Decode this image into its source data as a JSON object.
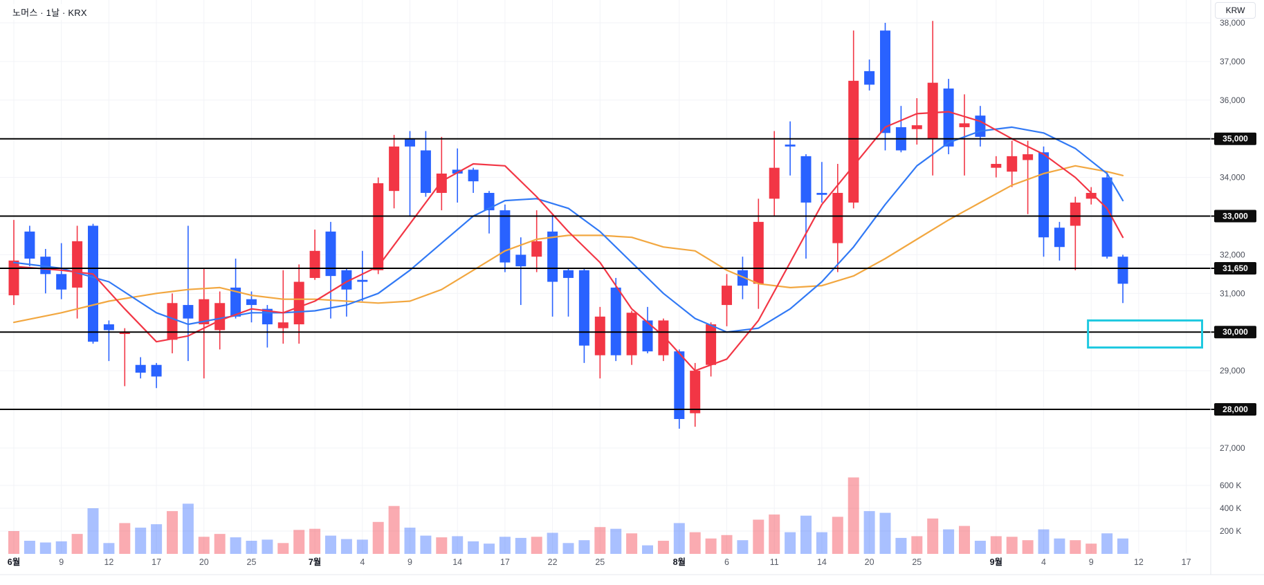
{
  "header": {
    "symbol_title": "노머스 · 1날 · KRX"
  },
  "price_axis": {
    "currency_label": "KRW",
    "plain_ticks": [
      {
        "price": 38000,
        "label": "38,000"
      },
      {
        "price": 37000,
        "label": "37,000"
      },
      {
        "price": 36000,
        "label": "36,000"
      },
      {
        "price": 34000,
        "label": "34,000"
      },
      {
        "price": 32000,
        "label": "32,000"
      },
      {
        "price": 31000,
        "label": "31,000"
      },
      {
        "price": 29000,
        "label": "29,000"
      },
      {
        "price": 27000,
        "label": "27,000"
      }
    ],
    "line_labels": [
      {
        "price": 35000,
        "label": "35,000"
      },
      {
        "price": 33000,
        "label": "33,000"
      },
      {
        "price": 31650,
        "label": "31,650"
      },
      {
        "price": 30000,
        "label": "30,000"
      },
      {
        "price": 28000,
        "label": "28,000"
      }
    ]
  },
  "volume_axis": {
    "labels": [
      {
        "value_k": 600,
        "label": "600 K"
      },
      {
        "value_k": 400,
        "label": "400 K"
      },
      {
        "value_k": 200,
        "label": "200 K"
      }
    ]
  },
  "time_axis": {
    "ticks": [
      {
        "index": 0,
        "label": "6월",
        "emphasis": true
      },
      {
        "index": 3,
        "label": "9"
      },
      {
        "index": 6,
        "label": "12"
      },
      {
        "index": 9,
        "label": "17"
      },
      {
        "index": 12,
        "label": "20"
      },
      {
        "index": 15,
        "label": "25"
      },
      {
        "index": 19,
        "label": "7월",
        "emphasis": true
      },
      {
        "index": 22,
        "label": "4"
      },
      {
        "index": 25,
        "label": "9"
      },
      {
        "index": 28,
        "label": "14"
      },
      {
        "index": 31,
        "label": "17"
      },
      {
        "index": 34,
        "label": "22"
      },
      {
        "index": 37,
        "label": "25"
      },
      {
        "index": 42,
        "label": "8월",
        "emphasis": true
      },
      {
        "index": 45,
        "label": "6"
      },
      {
        "index": 48,
        "label": "11"
      },
      {
        "index": 51,
        "label": "14"
      },
      {
        "index": 54,
        "label": "20"
      },
      {
        "index": 57,
        "label": "25"
      },
      {
        "index": 62,
        "label": "9월",
        "emphasis": true
      },
      {
        "index": 65,
        "label": "4"
      },
      {
        "index": 68,
        "label": "9"
      },
      {
        "index": 71,
        "label": "12"
      },
      {
        "index": 74,
        "label": "17"
      }
    ]
  },
  "colors": {
    "candle_up": "#f23645",
    "candle_down": "#2962ff",
    "volume_up": "rgba(242,54,69,0.42)",
    "volume_down": "rgba(41,98,255,0.40)",
    "ma_fast": "#f23645",
    "ma_mid": "#3179f5",
    "ma_slow": "#f2a740",
    "horizontal_line": "#000000",
    "rectangle_drawing": "#1ec9e0",
    "grid": "#f2f3f7",
    "axis_text": "#4a4e59",
    "axis_text_strong": "#131722",
    "pill_bg": "#0d0d0d",
    "pill_text": "#ffffff",
    "axis_border": "#e4e7ee"
  },
  "chart_data": {
    "type": "candlestick",
    "title": "노머스 · 1날 · KRX",
    "symbol": "노머스",
    "interval": "1날",
    "exchange": "KRX",
    "currency": "KRW",
    "price_ticks_step": 1000,
    "visible_price_range": [
      27000,
      38300
    ],
    "volume_scale_k": [
      200,
      400,
      600
    ],
    "horizontal_lines": [
      35000,
      33000,
      31650,
      30000,
      28000
    ],
    "rectangle": {
      "from_index": 67.8,
      "to_index": 75.0,
      "top_price": 30300,
      "bottom_price": 29600
    },
    "candle_format": [
      "open",
      "high",
      "low",
      "close",
      "volume_k"
    ],
    "candles": [
      [
        30950,
        32900,
        30700,
        31850,
        200
      ],
      [
        32600,
        32750,
        31700,
        31900,
        115
      ],
      [
        31950,
        32150,
        31000,
        31500,
        100
      ],
      [
        31500,
        32300,
        30850,
        31100,
        110
      ],
      [
        31150,
        32750,
        30350,
        32350,
        175
      ],
      [
        32750,
        32800,
        29700,
        29750,
        400
      ],
      [
        30200,
        30300,
        29250,
        30050,
        95
      ],
      [
        29950,
        30100,
        28600,
        30000,
        270
      ],
      [
        29150,
        29350,
        28800,
        28950,
        230
      ],
      [
        29150,
        29200,
        28550,
        28850,
        260
      ],
      [
        29800,
        31000,
        29450,
        30750,
        375
      ],
      [
        30700,
        32750,
        29250,
        30350,
        440
      ],
      [
        30200,
        31650,
        28800,
        30850,
        150
      ],
      [
        30050,
        31050,
        29550,
        30750,
        175
      ],
      [
        31150,
        31900,
        30350,
        30400,
        145
      ],
      [
        30850,
        31050,
        30250,
        30700,
        115
      ],
      [
        30600,
        30700,
        29600,
        30200,
        125
      ],
      [
        30100,
        31600,
        29700,
        30250,
        95
      ],
      [
        30200,
        31750,
        29700,
        31300,
        210
      ],
      [
        31400,
        32650,
        31350,
        32100,
        220
      ],
      [
        32600,
        32850,
        30350,
        31450,
        160
      ],
      [
        31600,
        31650,
        30400,
        31100,
        130
      ],
      [
        31350,
        32100,
        30800,
        31300,
        125
      ],
      [
        31600,
        34000,
        31500,
        33850,
        280
      ],
      [
        33650,
        35100,
        33200,
        34800,
        420
      ],
      [
        35000,
        35200,
        33000,
        34800,
        230
      ],
      [
        34700,
        35200,
        33500,
        33600,
        160
      ],
      [
        33600,
        35050,
        33150,
        34100,
        145
      ],
      [
        34200,
        34750,
        33350,
        34100,
        155
      ],
      [
        34200,
        34250,
        33600,
        33900,
        110
      ],
      [
        33600,
        33650,
        32550,
        33150,
        90
      ],
      [
        33150,
        33300,
        31550,
        31800,
        150
      ],
      [
        32000,
        32450,
        30700,
        31700,
        140
      ],
      [
        31950,
        33150,
        31550,
        32350,
        150
      ],
      [
        32600,
        33050,
        30400,
        31300,
        185
      ],
      [
        31600,
        31650,
        30400,
        31400,
        95
      ],
      [
        31600,
        31650,
        29200,
        29650,
        120
      ],
      [
        29400,
        30650,
        28800,
        30400,
        235
      ],
      [
        31150,
        31400,
        29250,
        29400,
        220
      ],
      [
        29400,
        30550,
        29150,
        30500,
        180
      ],
      [
        30300,
        30650,
        29450,
        29500,
        75
      ],
      [
        29400,
        30350,
        29250,
        30300,
        115
      ],
      [
        29500,
        29550,
        27500,
        27750,
        270
      ],
      [
        27900,
        29200,
        27550,
        29000,
        190
      ],
      [
        29150,
        30250,
        28850,
        30200,
        135
      ],
      [
        30700,
        31500,
        30150,
        31200,
        165
      ],
      [
        31600,
        31950,
        30850,
        31200,
        120
      ],
      [
        31250,
        33450,
        30600,
        32850,
        300
      ],
      [
        33450,
        35200,
        33000,
        34250,
        345
      ],
      [
        34850,
        35450,
        34050,
        34800,
        190
      ],
      [
        34550,
        34600,
        31900,
        33350,
        335
      ],
      [
        33600,
        34400,
        33350,
        33550,
        190
      ],
      [
        32300,
        34350,
        31550,
        33600,
        325
      ],
      [
        33350,
        37800,
        33200,
        36500,
        670
      ],
      [
        36750,
        37050,
        36250,
        36400,
        375
      ],
      [
        37800,
        38000,
        34700,
        35150,
        360
      ],
      [
        35300,
        35850,
        34650,
        34700,
        140
      ],
      [
        35250,
        36050,
        34850,
        35350,
        155
      ],
      [
        35000,
        38050,
        34050,
        36450,
        310
      ],
      [
        36300,
        36550,
        34600,
        34800,
        215
      ],
      [
        35300,
        36150,
        34050,
        35400,
        245
      ],
      [
        35600,
        35850,
        34800,
        35050,
        115
      ],
      [
        34250,
        34550,
        34000,
        34350,
        155
      ],
      [
        34150,
        34950,
        33750,
        34550,
        150
      ],
      [
        34450,
        34950,
        33050,
        34600,
        120
      ],
      [
        34650,
        34800,
        31950,
        32450,
        215
      ],
      [
        32700,
        32850,
        31850,
        32200,
        135
      ],
      [
        32750,
        33500,
        31600,
        33350,
        120
      ],
      [
        33450,
        33750,
        33300,
        33600,
        90
      ],
      [
        34000,
        34150,
        31900,
        31950,
        180
      ],
      [
        31950,
        32000,
        30750,
        31250,
        135
      ]
    ],
    "ma_lines": [
      {
        "name": "ma-slow-yellow",
        "color_key": "ma_slow",
        "points": [
          [
            0,
            30250
          ],
          [
            3,
            30500
          ],
          [
            6,
            30800
          ],
          [
            9,
            31000
          ],
          [
            11,
            31100
          ],
          [
            13,
            31150
          ],
          [
            15,
            30950
          ],
          [
            17,
            30850
          ],
          [
            19,
            30850
          ],
          [
            21,
            30800
          ],
          [
            23,
            30750
          ],
          [
            25,
            30800
          ],
          [
            27,
            31100
          ],
          [
            29,
            31600
          ],
          [
            31,
            32100
          ],
          [
            33,
            32400
          ],
          [
            35,
            32500
          ],
          [
            37,
            32500
          ],
          [
            39,
            32450
          ],
          [
            41,
            32200
          ],
          [
            43,
            32100
          ],
          [
            45,
            31600
          ],
          [
            47,
            31250
          ],
          [
            49,
            31150
          ],
          [
            51,
            31200
          ],
          [
            53,
            31450
          ],
          [
            55,
            31900
          ],
          [
            57,
            32400
          ],
          [
            59,
            32900
          ],
          [
            61,
            33350
          ],
          [
            63,
            33800
          ],
          [
            65,
            34100
          ],
          [
            67,
            34300
          ],
          [
            69,
            34150
          ],
          [
            70,
            34050
          ]
        ]
      },
      {
        "name": "ma-mid-blue",
        "color_key": "ma_mid",
        "points": [
          [
            0,
            31800
          ],
          [
            3,
            31650
          ],
          [
            6,
            31300
          ],
          [
            9,
            30500
          ],
          [
            11,
            30200
          ],
          [
            13,
            30350
          ],
          [
            15,
            30500
          ],
          [
            17,
            30500
          ],
          [
            19,
            30550
          ],
          [
            21,
            30700
          ],
          [
            23,
            31000
          ],
          [
            25,
            31600
          ],
          [
            27,
            32300
          ],
          [
            29,
            33000
          ],
          [
            31,
            33400
          ],
          [
            33,
            33450
          ],
          [
            35,
            33200
          ],
          [
            37,
            32600
          ],
          [
            39,
            31800
          ],
          [
            41,
            31000
          ],
          [
            43,
            30350
          ],
          [
            45,
            30000
          ],
          [
            47,
            30100
          ],
          [
            49,
            30600
          ],
          [
            51,
            31300
          ],
          [
            53,
            32200
          ],
          [
            55,
            33300
          ],
          [
            57,
            34300
          ],
          [
            59,
            34900
          ],
          [
            61,
            35200
          ],
          [
            63,
            35300
          ],
          [
            65,
            35150
          ],
          [
            67,
            34750
          ],
          [
            69,
            34100
          ],
          [
            70,
            33400
          ]
        ]
      },
      {
        "name": "ma-fast-red",
        "color_key": "ma_fast",
        "points": [
          [
            0,
            31700
          ],
          [
            3,
            31600
          ],
          [
            5,
            31500
          ],
          [
            7,
            30600
          ],
          [
            9,
            29750
          ],
          [
            11,
            29900
          ],
          [
            13,
            30300
          ],
          [
            15,
            30600
          ],
          [
            17,
            30500
          ],
          [
            19,
            30800
          ],
          [
            21,
            31300
          ],
          [
            23,
            31700
          ],
          [
            25,
            32800
          ],
          [
            27,
            33900
          ],
          [
            29,
            34350
          ],
          [
            31,
            34300
          ],
          [
            33,
            33500
          ],
          [
            35,
            32600
          ],
          [
            37,
            31800
          ],
          [
            39,
            30600
          ],
          [
            41,
            29900
          ],
          [
            43,
            29000
          ],
          [
            45,
            29300
          ],
          [
            47,
            30300
          ],
          [
            49,
            31800
          ],
          [
            51,
            33300
          ],
          [
            53,
            34300
          ],
          [
            55,
            35300
          ],
          [
            57,
            35650
          ],
          [
            59,
            35700
          ],
          [
            61,
            35450
          ],
          [
            63,
            35000
          ],
          [
            65,
            34600
          ],
          [
            67,
            34000
          ],
          [
            69,
            33200
          ],
          [
            70,
            32450
          ]
        ]
      }
    ]
  }
}
